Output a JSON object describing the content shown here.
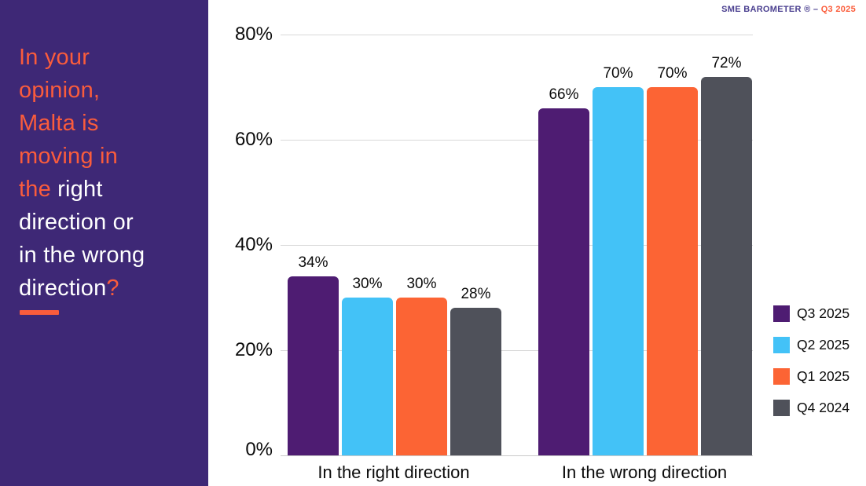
{
  "header": {
    "brand": "SME BAROMETER ® – ",
    "brand_highlight": "Q3 2025",
    "brand_color": "#4B4090",
    "highlight_color": "#FB5D3B"
  },
  "sidebar": {
    "background": "#3E2876",
    "accent_color": "#FA5C3C",
    "question_full": "In your opinion, Malta is moving in the right direction or in the wrong direction?",
    "question_lines": [
      {
        "segments": [
          {
            "text": "In your",
            "color": "orange"
          }
        ]
      },
      {
        "segments": [
          {
            "text": "opinion,",
            "color": "orange"
          }
        ]
      },
      {
        "segments": [
          {
            "text": "Malta is",
            "color": "orange"
          }
        ]
      },
      {
        "segments": [
          {
            "text": "moving in",
            "color": "orange"
          }
        ]
      },
      {
        "segments": [
          {
            "text": "the ",
            "color": "orange"
          },
          {
            "text": "right",
            "color": "white"
          }
        ]
      },
      {
        "segments": [
          {
            "text": "direction or",
            "color": "white"
          }
        ]
      },
      {
        "segments": [
          {
            "text": "in the wrong",
            "color": "white"
          }
        ]
      },
      {
        "segments": [
          {
            "text": "direction",
            "color": "white"
          },
          {
            "text": "?",
            "color": "orange"
          }
        ]
      }
    ]
  },
  "chart_data": {
    "type": "bar",
    "title": "",
    "categories": [
      "In the right direction",
      "In the wrong direction"
    ],
    "series": [
      {
        "name": "Q3 2025",
        "color": "#4E1C72",
        "values": [
          34,
          66
        ]
      },
      {
        "name": "Q2 2025",
        "color": "#43C2F7",
        "values": [
          30,
          70
        ]
      },
      {
        "name": "Q1 2025",
        "color": "#FC6434",
        "values": [
          30,
          70
        ]
      },
      {
        "name": "Q4 2024",
        "color": "#4F515A",
        "values": [
          28,
          72
        ]
      }
    ],
    "value_suffix": "%",
    "ylim": [
      0,
      80
    ],
    "ytick_labels": [
      "80%",
      "60%",
      "40%",
      "20%",
      "0%"
    ],
    "grid": true,
    "legend_position": "right",
    "gridline_color": "#D9D9D9"
  }
}
